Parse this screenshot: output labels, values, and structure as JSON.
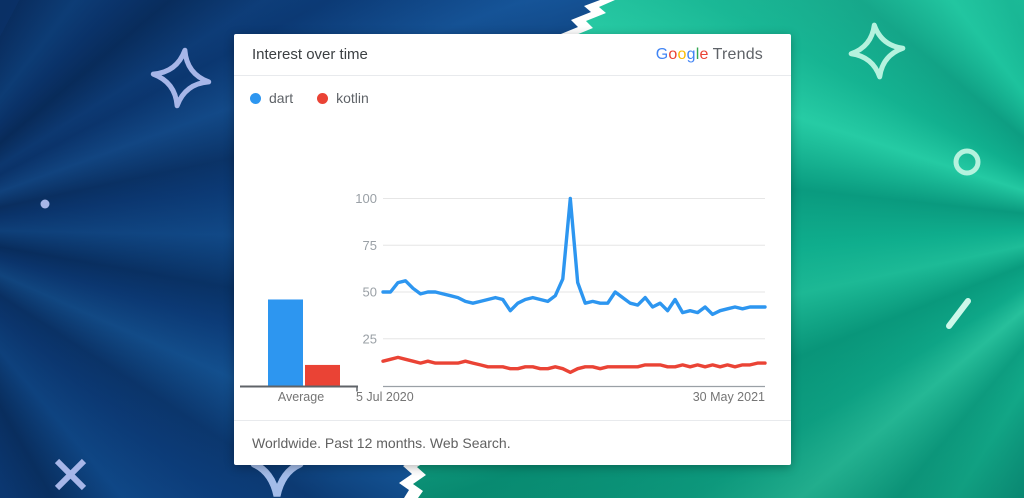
{
  "background": {
    "left_color": "#0d4181",
    "right_color": "#10b492",
    "accent_left": "#a7b6e8",
    "accent_right": "#b5f2de"
  },
  "card": {
    "title": "Interest over time",
    "logo": {
      "letters": [
        {
          "ch": "G",
          "color": "#4285F4"
        },
        {
          "ch": "o",
          "color": "#EA4335"
        },
        {
          "ch": "o",
          "color": "#FBBC05"
        },
        {
          "ch": "g",
          "color": "#4285F4"
        },
        {
          "ch": "l",
          "color": "#34A853"
        },
        {
          "ch": "e",
          "color": "#EA4335"
        }
      ],
      "suffix": "Trends"
    },
    "legend": [
      {
        "label": "dart",
        "color": "#2d96f0"
      },
      {
        "label": "kotlin",
        "color": "#ea4335"
      }
    ],
    "footer": "Worldwide. Past 12 months. Web Search."
  },
  "chart_data": {
    "type": "line",
    "title": "Interest over time",
    "x_axis": {
      "start_label": "5 Jul 2020",
      "end_label": "30 May 2021",
      "unit": "weeks"
    },
    "y_axis": {
      "ticks": [
        25,
        50,
        75,
        100
      ],
      "range": [
        0,
        100
      ]
    },
    "grid": true,
    "legend_position": "top-left",
    "series": [
      {
        "name": "dart",
        "color": "#2d96f0",
        "values": [
          50,
          50,
          55,
          56,
          52,
          49,
          50,
          50,
          49,
          48,
          47,
          45,
          44,
          45,
          46,
          47,
          46,
          40,
          44,
          46,
          47,
          46,
          45,
          48,
          57,
          100,
          55,
          44,
          45,
          44,
          44,
          50,
          47,
          44,
          43,
          47,
          42,
          44,
          40,
          46,
          39,
          40,
          39,
          42,
          38,
          40,
          41,
          42,
          41,
          42,
          42,
          42
        ]
      },
      {
        "name": "kotlin",
        "color": "#ea4335",
        "values": [
          13,
          14,
          15,
          14,
          13,
          12,
          13,
          12,
          12,
          12,
          12,
          13,
          12,
          11,
          10,
          10,
          10,
          9,
          9,
          10,
          10,
          9,
          9,
          10,
          9,
          7,
          9,
          10,
          10,
          9,
          10,
          10,
          10,
          10,
          10,
          11,
          11,
          11,
          10,
          10,
          11,
          10,
          11,
          10,
          11,
          10,
          11,
          10,
          11,
          11,
          12,
          12
        ]
      }
    ],
    "averages": [
      {
        "name": "dart",
        "value": 46
      },
      {
        "name": "kotlin",
        "value": 11
      }
    ],
    "average_label": "Average"
  }
}
